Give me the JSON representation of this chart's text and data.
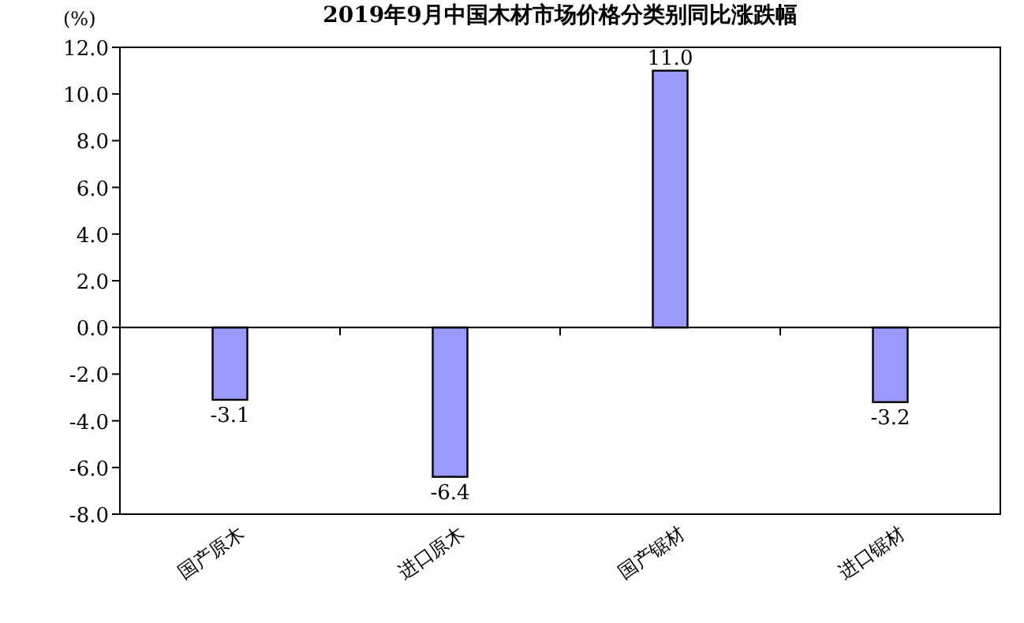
{
  "chart_data": {
    "type": "bar",
    "title": "2019年9月中国木材市场价格分类别同比涨跌幅",
    "ylabel": "(%)",
    "categories": [
      "国产原木",
      "进口原木",
      "国产锯材",
      "进口锯材"
    ],
    "values": [
      -3.1,
      -6.4,
      11.0,
      -3.2
    ],
    "value_labels": [
      "-3.1",
      "-6.4",
      "11.0",
      "-3.2"
    ],
    "color": "#9999ff",
    "ylim": [
      -8,
      12
    ],
    "yticks": [
      {
        "value": -8,
        "label": "-8.0"
      },
      {
        "value": -6,
        "label": "-6.0"
      },
      {
        "value": -4,
        "label": "-4.0"
      },
      {
        "value": -2,
        "label": "-2.0"
      },
      {
        "value": 0,
        "label": "0.0"
      },
      {
        "value": 2,
        "label": "2.0"
      },
      {
        "value": 4,
        "label": "4.0"
      },
      {
        "value": 6,
        "label": "6.0"
      },
      {
        "value": 8,
        "label": "8.0"
      },
      {
        "value": 10,
        "label": "10.0"
      },
      {
        "value": 12,
        "label": "12.0"
      }
    ]
  }
}
